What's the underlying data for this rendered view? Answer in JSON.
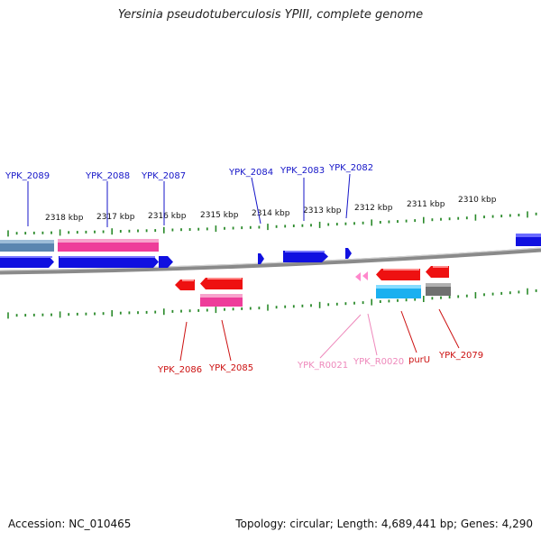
{
  "title": "Yersinia pseudotuberculosis YPIII, complete genome",
  "accession": "Accession: NC_010465",
  "topology": "Topology: circular; Length: 4,689,441 bp; Genes: 4,290",
  "colors": {
    "backbone": "#8a8a8a",
    "tick": "#2a8a2a",
    "forward_gene": "#1010e0",
    "reverse_gene": "#ee1111",
    "rrna_gene": "#ff88cc",
    "pink_feature": "#ee3d9a",
    "steel_feature": "#5a86b0",
    "cyan_feature": "#1ab0f0",
    "gray_feature": "#707070",
    "forward_label": "#1515c8",
    "reverse_label": "#cc1010",
    "rrna_label": "#ee88bb",
    "kbp_label": "#111111"
  },
  "kbp_labels": [
    "2318 kbp",
    "2317 kbp",
    "2316 kbp",
    "2315 kbp",
    "2314 kbp",
    "2313 kbp",
    "2312 kbp",
    "2311 kbp",
    "2310 kbp"
  ],
  "forward_genes": [
    "YPK_2089",
    "YPK_2088",
    "YPK_2087",
    "YPK_2084",
    "YPK_2083",
    "YPK_2082"
  ],
  "reverse_genes": [
    "YPK_2086",
    "YPK_2085",
    "YPK_R0021",
    "YPK_R0020",
    "purU",
    "YPK_2079"
  ]
}
